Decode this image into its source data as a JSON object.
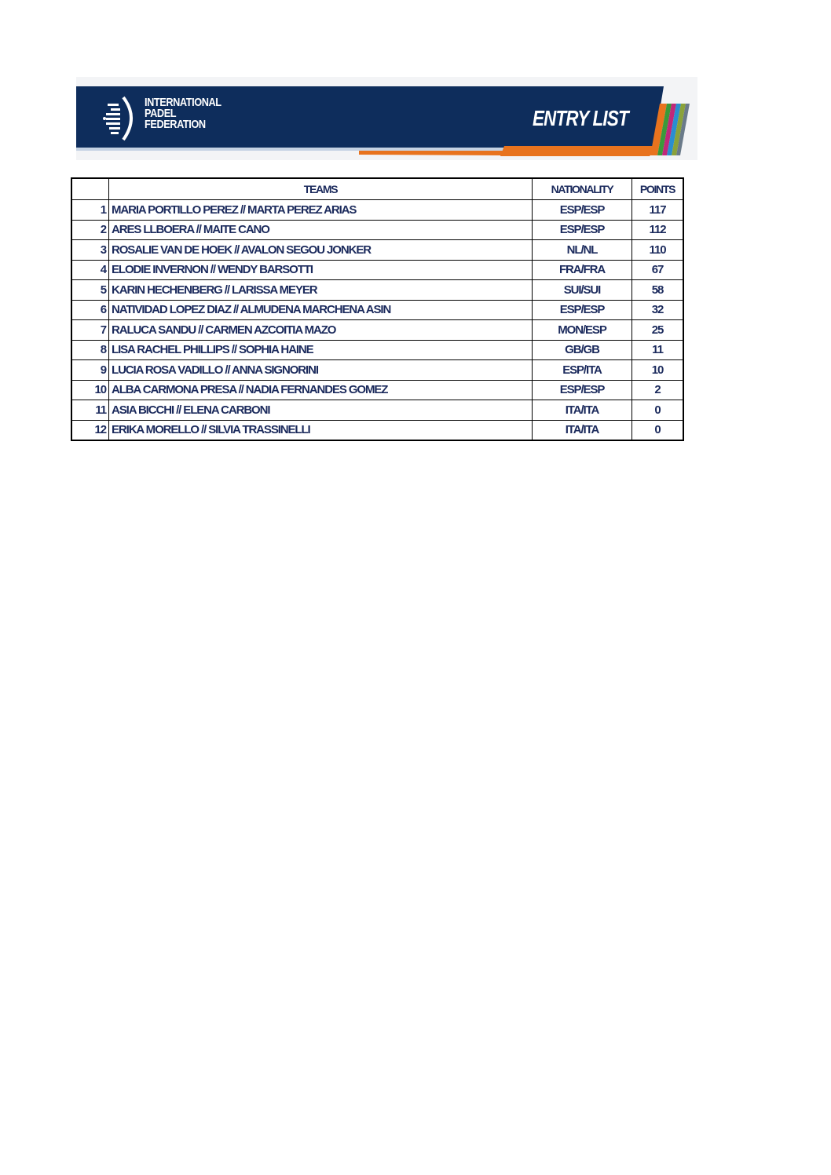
{
  "header": {
    "org_line1": "INTERNATIONAL",
    "org_line2": "PADEL",
    "org_line3": "FEDERATION",
    "title": "ENTRY LIST",
    "colors": {
      "navy": "#0e2d5c",
      "orange": "#e8731e"
    }
  },
  "table": {
    "columns": [
      "",
      "TEAMS",
      "NATIONALITY",
      "POINTS"
    ],
    "rows": [
      {
        "rank": "1",
        "team": "MARIA PORTILLO PEREZ // MARTA PEREZ ARIAS",
        "nationality": "ESP/ESP",
        "points": "117"
      },
      {
        "rank": "2",
        "team": "ARES LLBOERA // MAITE CANO",
        "nationality": "ESP/ESP",
        "points": "112"
      },
      {
        "rank": "3",
        "team": "ROSALIE VAN DE HOEK // AVALON SEGOU JONKER",
        "nationality": "NL/NL",
        "points": "110"
      },
      {
        "rank": "4",
        "team": "ELODIE INVERNON // WENDY BARSOTTI",
        "nationality": "FRA/FRA",
        "points": "67"
      },
      {
        "rank": "5",
        "team": "KARIN HECHENBERG // LARISSA MEYER",
        "nationality": "SUI/SUI",
        "points": "58"
      },
      {
        "rank": "6",
        "team": "NATIVIDAD LOPEZ DIAZ // ALMUDENA MARCHENA ASIN",
        "nationality": "ESP/ESP",
        "points": "32"
      },
      {
        "rank": "7",
        "team": "RALUCA SANDU // CARMEN AZCOITIA MAZO",
        "nationality": "MON/ESP",
        "points": "25"
      },
      {
        "rank": "8",
        "team": "LISA RACHEL PHILLIPS // SOPHIA HAINE",
        "nationality": "GB/GB",
        "points": "11"
      },
      {
        "rank": "9",
        "team": "LUCIA ROSA VADILLO // ANNA SIGNORINI",
        "nationality": "ESP/ITA",
        "points": "10"
      },
      {
        "rank": "10",
        "team": "ALBA CARMONA PRESA // NADIA FERNANDES GOMEZ",
        "nationality": "ESP/ESP",
        "points": "2"
      },
      {
        "rank": "11",
        "team": "ASIA BICCHI // ELENA CARBONI",
        "nationality": "ITA/ITA",
        "points": "0"
      },
      {
        "rank": "12",
        "team": "ERIKA MORELLO // SILVIA TRASSINELLI",
        "nationality": "ITA/ITA",
        "points": "0"
      }
    ]
  }
}
